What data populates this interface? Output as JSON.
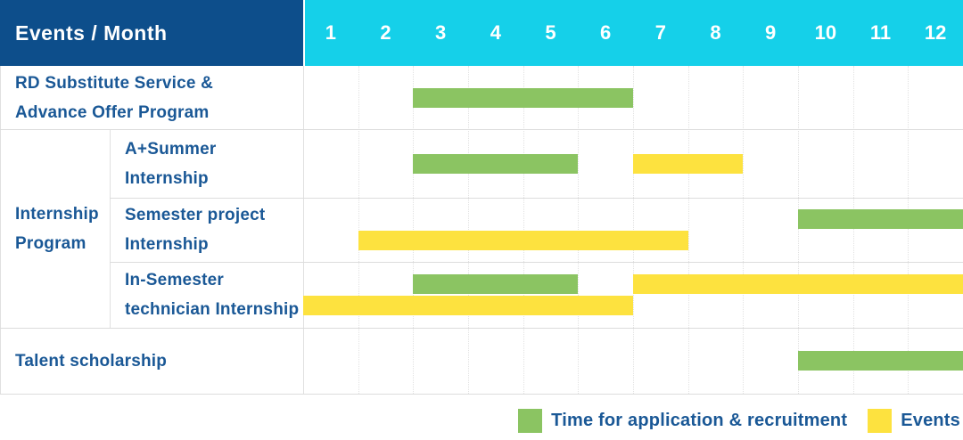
{
  "header": {
    "title": "Events / Month"
  },
  "colors": {
    "header_bg": "#0d4e8b",
    "months_bg": "#15d0e9",
    "label_text": "#1a5896",
    "application": "#8bc462",
    "events": "#fde23f",
    "grid_dotted": "#e2e2e2",
    "grid_solid": "#dcdcdc"
  },
  "chart_data": {
    "type": "gantt",
    "x_axis": {
      "label": "Month",
      "ticks": [
        "1",
        "2",
        "3",
        "4",
        "5",
        "6",
        "7",
        "8",
        "9",
        "10",
        "11",
        "12"
      ],
      "range": [
        1,
        12
      ]
    },
    "group": {
      "label": "Internship Program",
      "label_lines": [
        "Internship",
        "Program"
      ],
      "rows": [
        1,
        2,
        3
      ]
    },
    "rows": [
      {
        "label": "RD Substitute Service & Advance Offer Program",
        "label_lines": [
          "RD Substitute Service &",
          "Advance Offer Program"
        ],
        "group": null,
        "bars": [
          {
            "series": "application",
            "start_month": 3,
            "end_month": 6,
            "level": "middle"
          }
        ]
      },
      {
        "label": "A+Summer Internship",
        "label_lines": [
          "A+Summer",
          "Internship"
        ],
        "group": "Internship Program",
        "bars": [
          {
            "series": "application",
            "start_month": 3,
            "end_month": 5,
            "level": "middle"
          },
          {
            "series": "events",
            "start_month": 7,
            "end_month": 8,
            "level": "middle"
          }
        ]
      },
      {
        "label": "Semester project Internship",
        "label_lines": [
          "Semester project",
          "Internship"
        ],
        "group": "Internship Program",
        "bars": [
          {
            "series": "application",
            "start_month": 10,
            "end_month": 12,
            "level": "top"
          },
          {
            "series": "events",
            "start_month": 2,
            "end_month": 7,
            "level": "bottom"
          }
        ]
      },
      {
        "label": "In-Semester technician Internship",
        "label_lines": [
          "In-Semester",
          "technician Internship"
        ],
        "group": "Internship Program",
        "bars": [
          {
            "series": "application",
            "start_month": 3,
            "end_month": 5,
            "level": "top"
          },
          {
            "series": "events",
            "start_month": 7,
            "end_month": 12,
            "level": "top"
          },
          {
            "series": "events",
            "start_month": 1,
            "end_month": 6,
            "level": "bottom"
          }
        ]
      },
      {
        "label": "Talent scholarship",
        "label_lines": [
          "Talent scholarship"
        ],
        "group": null,
        "bars": [
          {
            "series": "application",
            "start_month": 10,
            "end_month": 12,
            "level": "middle"
          }
        ]
      }
    ],
    "legend": [
      {
        "series": "application",
        "label": "Time for application & recruitment"
      },
      {
        "series": "events",
        "label": "Events"
      }
    ]
  }
}
